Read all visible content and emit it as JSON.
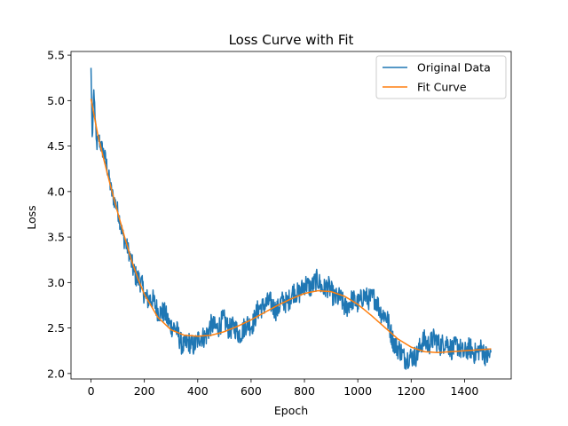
{
  "chart_data": {
    "type": "line",
    "title": "Loss Curve with Fit",
    "xlabel": "Epoch",
    "ylabel": "Loss",
    "xlim": [
      -75,
      1575
    ],
    "ylim": [
      1.94,
      5.54
    ],
    "xticks": [
      0,
      200,
      400,
      600,
      800,
      1000,
      1200,
      1400
    ],
    "yticks": [
      2.0,
      2.5,
      3.0,
      3.5,
      4.0,
      4.5,
      5.0,
      5.5
    ],
    "grid": false,
    "legend_position": "top-right",
    "series": [
      {
        "name": "Original Data",
        "color": "#1f77b4",
        "x": [
          0,
          5,
          10,
          20,
          30,
          40,
          60,
          80,
          100,
          120,
          150,
          200,
          250,
          300,
          350,
          400,
          450,
          500,
          550,
          600,
          650,
          700,
          750,
          800,
          850,
          900,
          950,
          1000,
          1050,
          1100,
          1150,
          1200,
          1250,
          1300,
          1350,
          1400,
          1450,
          1500
        ],
        "y": [
          5.36,
          4.52,
          5.15,
          4.5,
          4.61,
          4.5,
          4.25,
          3.99,
          3.76,
          3.54,
          3.22,
          2.88,
          2.72,
          2.55,
          2.3,
          2.35,
          2.5,
          2.56,
          2.45,
          2.55,
          2.78,
          2.72,
          2.85,
          2.95,
          3.0,
          2.9,
          2.75,
          2.8,
          2.85,
          2.65,
          2.25,
          2.15,
          2.35,
          2.35,
          2.3,
          2.25,
          2.25,
          2.2
        ],
        "noise_amplitude": 0.12
      },
      {
        "name": "Fit Curve",
        "color": "#ff7f0e",
        "x": [
          0,
          25,
          50,
          75,
          100,
          125,
          150,
          175,
          200,
          250,
          300,
          350,
          400,
          450,
          500,
          550,
          600,
          650,
          700,
          750,
          800,
          850,
          900,
          950,
          1000,
          1050,
          1100,
          1150,
          1200,
          1250,
          1300,
          1350,
          1400,
          1450,
          1500
        ],
        "y": [
          5.02,
          4.63,
          4.33,
          4.04,
          3.77,
          3.51,
          3.26,
          3.05,
          2.87,
          2.62,
          2.48,
          2.42,
          2.41,
          2.42,
          2.46,
          2.52,
          2.59,
          2.67,
          2.75,
          2.82,
          2.88,
          2.91,
          2.9,
          2.85,
          2.76,
          2.64,
          2.51,
          2.38,
          2.29,
          2.24,
          2.23,
          2.24,
          2.25,
          2.26,
          2.27
        ]
      }
    ]
  }
}
